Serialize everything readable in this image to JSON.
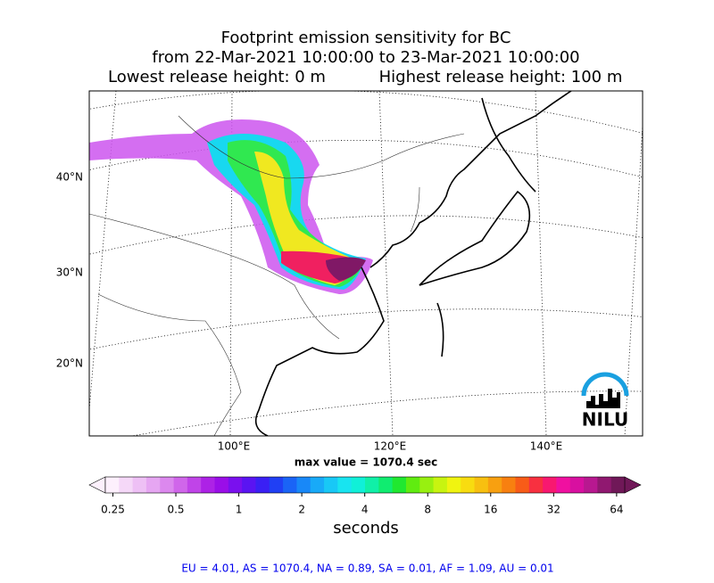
{
  "title": {
    "line1": "Footprint emission sensitivity for BC",
    "line2": "from 22-Mar-2021 10:00:00 to 23-Mar-2021 10:00:00",
    "line3a": "Lowest release height: 0 m",
    "line3b": "Highest release height: 100 m"
  },
  "map": {
    "lat_labels": [
      "40°N",
      "30°N",
      "20°N"
    ],
    "lon_labels": [
      "100°E",
      "120°E",
      "140°E"
    ],
    "logo": "NILU",
    "max_label": "max value = 1070.4 sec"
  },
  "colorbar": {
    "scale": "log",
    "lim": [
      0.23,
      70
    ],
    "ticks": [
      0.25,
      0.5,
      1,
      2,
      4,
      8,
      16,
      32,
      64
    ],
    "label": "seconds",
    "colors": [
      "#fdf0fd",
      "#f5d8f8",
      "#eec0f5",
      "#e6a6f2",
      "#dc88ee",
      "#d066ea",
      "#c044e8",
      "#ad22e6",
      "#9a0ee8",
      "#7a10ee",
      "#5a14f2",
      "#3a20f4",
      "#2040f4",
      "#1a64f6",
      "#1888f8",
      "#18aaf8",
      "#18c8f6",
      "#18e4f0",
      "#10f0d8",
      "#10f0a8",
      "#10ec70",
      "#20e830",
      "#60ec10",
      "#98f010",
      "#c8f410",
      "#f0f410",
      "#f8dc10",
      "#f8c010",
      "#f8a010",
      "#f88010",
      "#f85c18",
      "#f83040",
      "#f81870",
      "#f010a0",
      "#d810a0",
      "#b81890",
      "#901870",
      "#701858"
    ]
  },
  "footer": "EU = 4.01,  AS = 1070.4,  NA = 0.89,  SA = 0.01,  AF = 1.09,  AU = 0.01"
}
